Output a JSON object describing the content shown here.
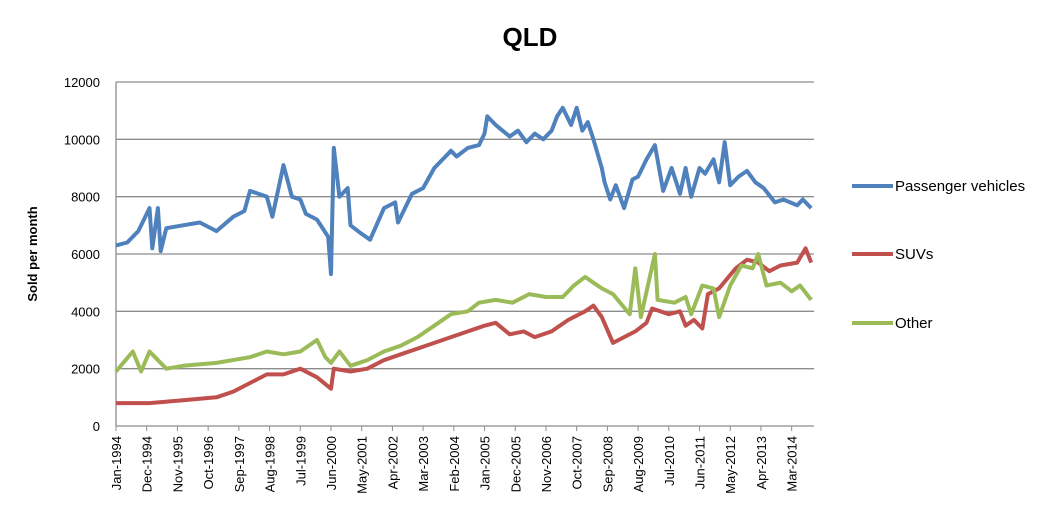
{
  "chart_data": {
    "type": "line",
    "title": "QLD",
    "xlabel": "",
    "ylabel": "Sold per month",
    "ylim": [
      0,
      12000
    ],
    "yticks": [
      "0",
      "2000",
      "4000",
      "6000",
      "8000",
      "10000",
      "12000"
    ],
    "x_unit": "months since Jan-1994",
    "xlim": [
      0,
      249
    ],
    "xtick_labels": [
      "Jan-1994",
      "Dec-1994",
      "Nov-1995",
      "Oct-1996",
      "Sep-1997",
      "Aug-1998",
      "Jul-1999",
      "Jun-2000",
      "May-2001",
      "Apr-2002",
      "Mar-2003",
      "Feb-2004",
      "Jan-2005",
      "Dec-2005",
      "Nov-2006",
      "Oct-2007",
      "Sep-2008",
      "Aug-2009",
      "Jul-2010",
      "Jun-2011",
      "May-2012",
      "Apr-2013",
      "Mar-2014"
    ],
    "grid": true,
    "legend_position": "right",
    "series": [
      {
        "name": "Passenger vehicles",
        "color": "#4F81BD",
        "points": [
          [
            0,
            6300
          ],
          [
            4,
            6400
          ],
          [
            8,
            6800
          ],
          [
            12,
            7600
          ],
          [
            13,
            6200
          ],
          [
            15,
            7600
          ],
          [
            16,
            6100
          ],
          [
            18,
            6900
          ],
          [
            24,
            7000
          ],
          [
            30,
            7100
          ],
          [
            36,
            6800
          ],
          [
            42,
            7300
          ],
          [
            46,
            7500
          ],
          [
            48,
            8200
          ],
          [
            54,
            8000
          ],
          [
            56,
            7300
          ],
          [
            60,
            9100
          ],
          [
            63,
            8000
          ],
          [
            66,
            7900
          ],
          [
            68,
            7400
          ],
          [
            72,
            7200
          ],
          [
            76,
            6600
          ],
          [
            77,
            5300
          ],
          [
            78,
            9700
          ],
          [
            80,
            8000
          ],
          [
            83,
            8300
          ],
          [
            84,
            7000
          ],
          [
            88,
            6700
          ],
          [
            91,
            6500
          ],
          [
            96,
            7600
          ],
          [
            100,
            7800
          ],
          [
            101,
            7100
          ],
          [
            106,
            8100
          ],
          [
            110,
            8300
          ],
          [
            114,
            9000
          ],
          [
            117,
            9300
          ],
          [
            120,
            9600
          ],
          [
            122,
            9400
          ],
          [
            126,
            9700
          ],
          [
            130,
            9800
          ],
          [
            132,
            10200
          ],
          [
            133,
            10800
          ],
          [
            136,
            10500
          ],
          [
            141,
            10100
          ],
          [
            144,
            10300
          ],
          [
            147,
            9900
          ],
          [
            150,
            10200
          ],
          [
            153,
            10000
          ],
          [
            156,
            10300
          ],
          [
            158,
            10800
          ],
          [
            160,
            11100
          ],
          [
            163,
            10500
          ],
          [
            165,
            11100
          ],
          [
            167,
            10300
          ],
          [
            169,
            10600
          ],
          [
            171,
            10000
          ],
          [
            174,
            9000
          ],
          [
            175,
            8500
          ],
          [
            177,
            7900
          ],
          [
            179,
            8400
          ],
          [
            182,
            7600
          ],
          [
            185,
            8600
          ],
          [
            187,
            8700
          ],
          [
            190,
            9300
          ],
          [
            193,
            9800
          ],
          [
            196,
            8200
          ],
          [
            199,
            9000
          ],
          [
            202,
            8100
          ],
          [
            204,
            9000
          ],
          [
            206,
            8000
          ],
          [
            209,
            9000
          ],
          [
            211,
            8800
          ],
          [
            214,
            9300
          ],
          [
            216,
            8500
          ],
          [
            218,
            9900
          ],
          [
            220,
            8400
          ],
          [
            223,
            8700
          ],
          [
            226,
            8900
          ],
          [
            229,
            8500
          ],
          [
            232,
            8300
          ],
          [
            236,
            7800
          ],
          [
            239,
            7900
          ],
          [
            244,
            7700
          ],
          [
            246,
            7900
          ],
          [
            249,
            7600
          ]
        ]
      },
      {
        "name": "SUVs",
        "color": "#C0504D",
        "points": [
          [
            0,
            800
          ],
          [
            12,
            800
          ],
          [
            24,
            900
          ],
          [
            36,
            1000
          ],
          [
            42,
            1200
          ],
          [
            48,
            1500
          ],
          [
            54,
            1800
          ],
          [
            60,
            1800
          ],
          [
            66,
            2000
          ],
          [
            72,
            1700
          ],
          [
            77,
            1300
          ],
          [
            78,
            2000
          ],
          [
            84,
            1900
          ],
          [
            90,
            2000
          ],
          [
            96,
            2300
          ],
          [
            102,
            2500
          ],
          [
            108,
            2700
          ],
          [
            114,
            2900
          ],
          [
            120,
            3100
          ],
          [
            126,
            3300
          ],
          [
            132,
            3500
          ],
          [
            136,
            3600
          ],
          [
            141,
            3200
          ],
          [
            146,
            3300
          ],
          [
            150,
            3100
          ],
          [
            156,
            3300
          ],
          [
            162,
            3700
          ],
          [
            168,
            4000
          ],
          [
            171,
            4200
          ],
          [
            174,
            3800
          ],
          [
            178,
            2900
          ],
          [
            182,
            3100
          ],
          [
            186,
            3300
          ],
          [
            190,
            3600
          ],
          [
            192,
            4100
          ],
          [
            198,
            3900
          ],
          [
            202,
            4000
          ],
          [
            204,
            3500
          ],
          [
            207,
            3700
          ],
          [
            210,
            3400
          ],
          [
            212,
            4600
          ],
          [
            216,
            4800
          ],
          [
            222,
            5500
          ],
          [
            226,
            5800
          ],
          [
            230,
            5700
          ],
          [
            234,
            5400
          ],
          [
            238,
            5600
          ],
          [
            244,
            5700
          ],
          [
            247,
            6200
          ],
          [
            249,
            5700
          ]
        ]
      },
      {
        "name": "Other",
        "color": "#9BBB59",
        "points": [
          [
            0,
            1900
          ],
          [
            6,
            2600
          ],
          [
            9,
            1900
          ],
          [
            12,
            2600
          ],
          [
            18,
            2000
          ],
          [
            24,
            2100
          ],
          [
            36,
            2200
          ],
          [
            48,
            2400
          ],
          [
            54,
            2600
          ],
          [
            60,
            2500
          ],
          [
            66,
            2600
          ],
          [
            72,
            3000
          ],
          [
            75,
            2400
          ],
          [
            77,
            2200
          ],
          [
            80,
            2600
          ],
          [
            84,
            2100
          ],
          [
            90,
            2300
          ],
          [
            96,
            2600
          ],
          [
            102,
            2800
          ],
          [
            108,
            3100
          ],
          [
            114,
            3500
          ],
          [
            120,
            3900
          ],
          [
            126,
            4000
          ],
          [
            130,
            4300
          ],
          [
            136,
            4400
          ],
          [
            142,
            4300
          ],
          [
            148,
            4600
          ],
          [
            154,
            4500
          ],
          [
            160,
            4500
          ],
          [
            164,
            4900
          ],
          [
            168,
            5200
          ],
          [
            171,
            5000
          ],
          [
            174,
            4800
          ],
          [
            178,
            4600
          ],
          [
            184,
            3900
          ],
          [
            186,
            5500
          ],
          [
            188,
            3800
          ],
          [
            193,
            6000
          ],
          [
            194,
            4400
          ],
          [
            200,
            4300
          ],
          [
            204,
            4500
          ],
          [
            206,
            3900
          ],
          [
            210,
            4900
          ],
          [
            214,
            4800
          ],
          [
            216,
            3800
          ],
          [
            220,
            4900
          ],
          [
            224,
            5600
          ],
          [
            228,
            5500
          ],
          [
            230,
            6000
          ],
          [
            233,
            4900
          ],
          [
            238,
            5000
          ],
          [
            242,
            4700
          ],
          [
            245,
            4900
          ],
          [
            249,
            4400
          ]
        ]
      }
    ]
  }
}
